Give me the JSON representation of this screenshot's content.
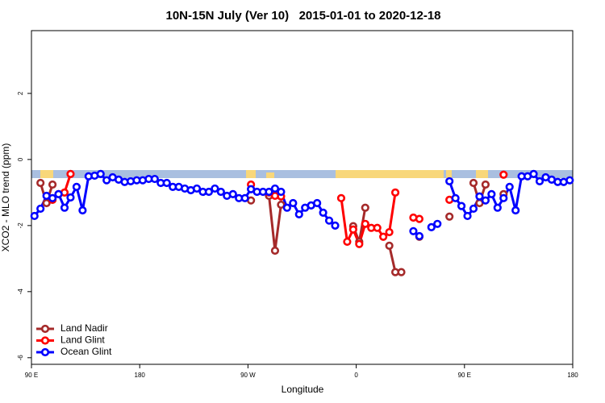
{
  "chart_data": {
    "type": "line",
    "title": "10N-15N July (Ver 10)   2015-01-01 to 2020-12-18",
    "x_label": "Longitude",
    "y_label": "XCO2 - MLO trend (ppm)",
    "xlim": [
      90,
      540
    ],
    "ylim": [
      -6.2,
      3.9
    ],
    "xticks": [
      {
        "value": 90,
        "label": "90 E"
      },
      180,
      {
        "value": 270,
        "label": "90 W"
      },
      {
        "value": 360,
        "label": "0"
      },
      {
        "value": 450,
        "label": "90 E"
      },
      {
        "value": 540,
        "label": "180"
      }
    ],
    "yticks": [
      -6,
      -4,
      -2,
      0,
      2
    ],
    "legend": "bottom-left",
    "x": [
      92.5,
      97.5,
      102.5,
      107.5,
      112.5,
      117.5,
      122.5,
      127.5,
      132.5,
      137.5,
      142.5,
      147.5,
      152.5,
      157.5,
      162.5,
      167.5,
      172.5,
      177.5,
      182.5,
      187.5,
      192.5,
      197.5,
      202.5,
      207.5,
      212.5,
      217.5,
      222.5,
      227.5,
      232.5,
      237.5,
      242.5,
      247.5,
      252.5,
      257.5,
      262.5,
      267.5,
      272.5,
      277.5,
      282.5,
      287.5,
      292.5,
      297.5,
      302.5,
      307.5,
      312.5,
      317.5,
      322.5,
      327.5,
      332.5,
      337.5,
      342.5,
      347.5,
      352.5,
      357.5,
      362.5,
      367.5,
      372.5,
      377.5,
      382.5,
      387.5,
      392.5,
      397.5,
      402.5,
      407.5,
      412.5,
      417.5,
      422.5,
      427.5,
      432.5,
      437.5,
      442.5,
      447.5,
      452.5,
      457.5,
      462.5,
      467.5,
      472.5,
      477.5,
      482.5,
      487.5,
      492.5,
      497.5,
      502.5,
      507.5,
      512.5,
      517.5,
      522.5,
      527.5,
      532.5,
      537.5
    ],
    "series": [
      {
        "name": "Land Nadir",
        "color": "#a52a2a",
        "values": [
          null,
          -0.71,
          -1.32,
          -0.76,
          null,
          null,
          null,
          null,
          null,
          null,
          null,
          null,
          null,
          null,
          null,
          null,
          null,
          null,
          null,
          null,
          null,
          null,
          null,
          null,
          null,
          null,
          null,
          null,
          null,
          null,
          null,
          null,
          null,
          null,
          null,
          null,
          -1.24,
          null,
          null,
          -1.1,
          -2.76,
          -1.37,
          null,
          null,
          null,
          null,
          null,
          null,
          null,
          null,
          null,
          null,
          null,
          -2.02,
          -2.49,
          -1.46,
          null,
          null,
          null,
          -2.61,
          -3.41,
          -3.41,
          null,
          null,
          -2.34,
          null,
          null,
          null,
          null,
          -1.73,
          null,
          null,
          null,
          -0.71,
          -1.32,
          -0.76,
          null,
          null,
          -1.05,
          null,
          null,
          null,
          null,
          null,
          null,
          null,
          null,
          null,
          null,
          null
        ]
      },
      {
        "name": "Land Glint",
        "color": "#ff0000",
        "values": [
          null,
          null,
          null,
          -1.22,
          -1.05,
          -1.0,
          -0.44,
          null,
          null,
          null,
          null,
          null,
          null,
          null,
          null,
          null,
          null,
          null,
          null,
          null,
          null,
          null,
          null,
          null,
          null,
          null,
          null,
          null,
          null,
          null,
          null,
          null,
          null,
          null,
          null,
          null,
          -0.76,
          null,
          null,
          -1.0,
          -1.1,
          -1.12,
          null,
          null,
          null,
          null,
          null,
          null,
          null,
          null,
          null,
          -1.17,
          -2.49,
          -2.12,
          -2.56,
          -1.95,
          -2.07,
          -2.07,
          -2.34,
          -2.2,
          -1.0,
          null,
          null,
          -1.76,
          -1.8,
          null,
          null,
          null,
          null,
          -1.22,
          null,
          null,
          null,
          null,
          null,
          null,
          null,
          null,
          -0.46,
          null,
          null,
          null,
          null,
          null,
          null,
          null,
          null,
          null,
          null,
          null
        ]
      },
      {
        "name": "Ocean Glint",
        "color": "#0000ff",
        "values": [
          -1.71,
          -1.49,
          -1.1,
          -1.17,
          -1.05,
          -1.46,
          -1.15,
          -0.83,
          -1.54,
          -0.51,
          -0.49,
          -0.44,
          -0.63,
          -0.54,
          -0.61,
          -0.68,
          -0.66,
          -0.63,
          -0.63,
          -0.59,
          -0.59,
          -0.71,
          -0.71,
          -0.83,
          -0.83,
          -0.88,
          -0.93,
          -0.88,
          -0.98,
          -0.98,
          -0.88,
          -0.98,
          -1.1,
          -1.05,
          -1.17,
          -1.17,
          -0.9,
          -0.98,
          -0.98,
          -0.98,
          -0.88,
          -0.98,
          -1.46,
          -1.32,
          -1.66,
          -1.46,
          -1.39,
          -1.32,
          -1.61,
          -1.85,
          -2.0,
          null,
          null,
          null,
          null,
          null,
          null,
          null,
          null,
          null,
          null,
          null,
          null,
          -2.17,
          -2.32,
          null,
          -2.05,
          -1.95,
          null,
          -0.66,
          -1.17,
          -1.41,
          -1.71,
          -1.49,
          -1.12,
          -1.24,
          -1.05,
          -1.46,
          -1.17,
          -0.83,
          -1.54,
          -0.51,
          -0.51,
          -0.44,
          -0.66,
          -0.54,
          -0.61,
          -0.68,
          -0.68,
          -0.63
        ]
      }
    ]
  }
}
